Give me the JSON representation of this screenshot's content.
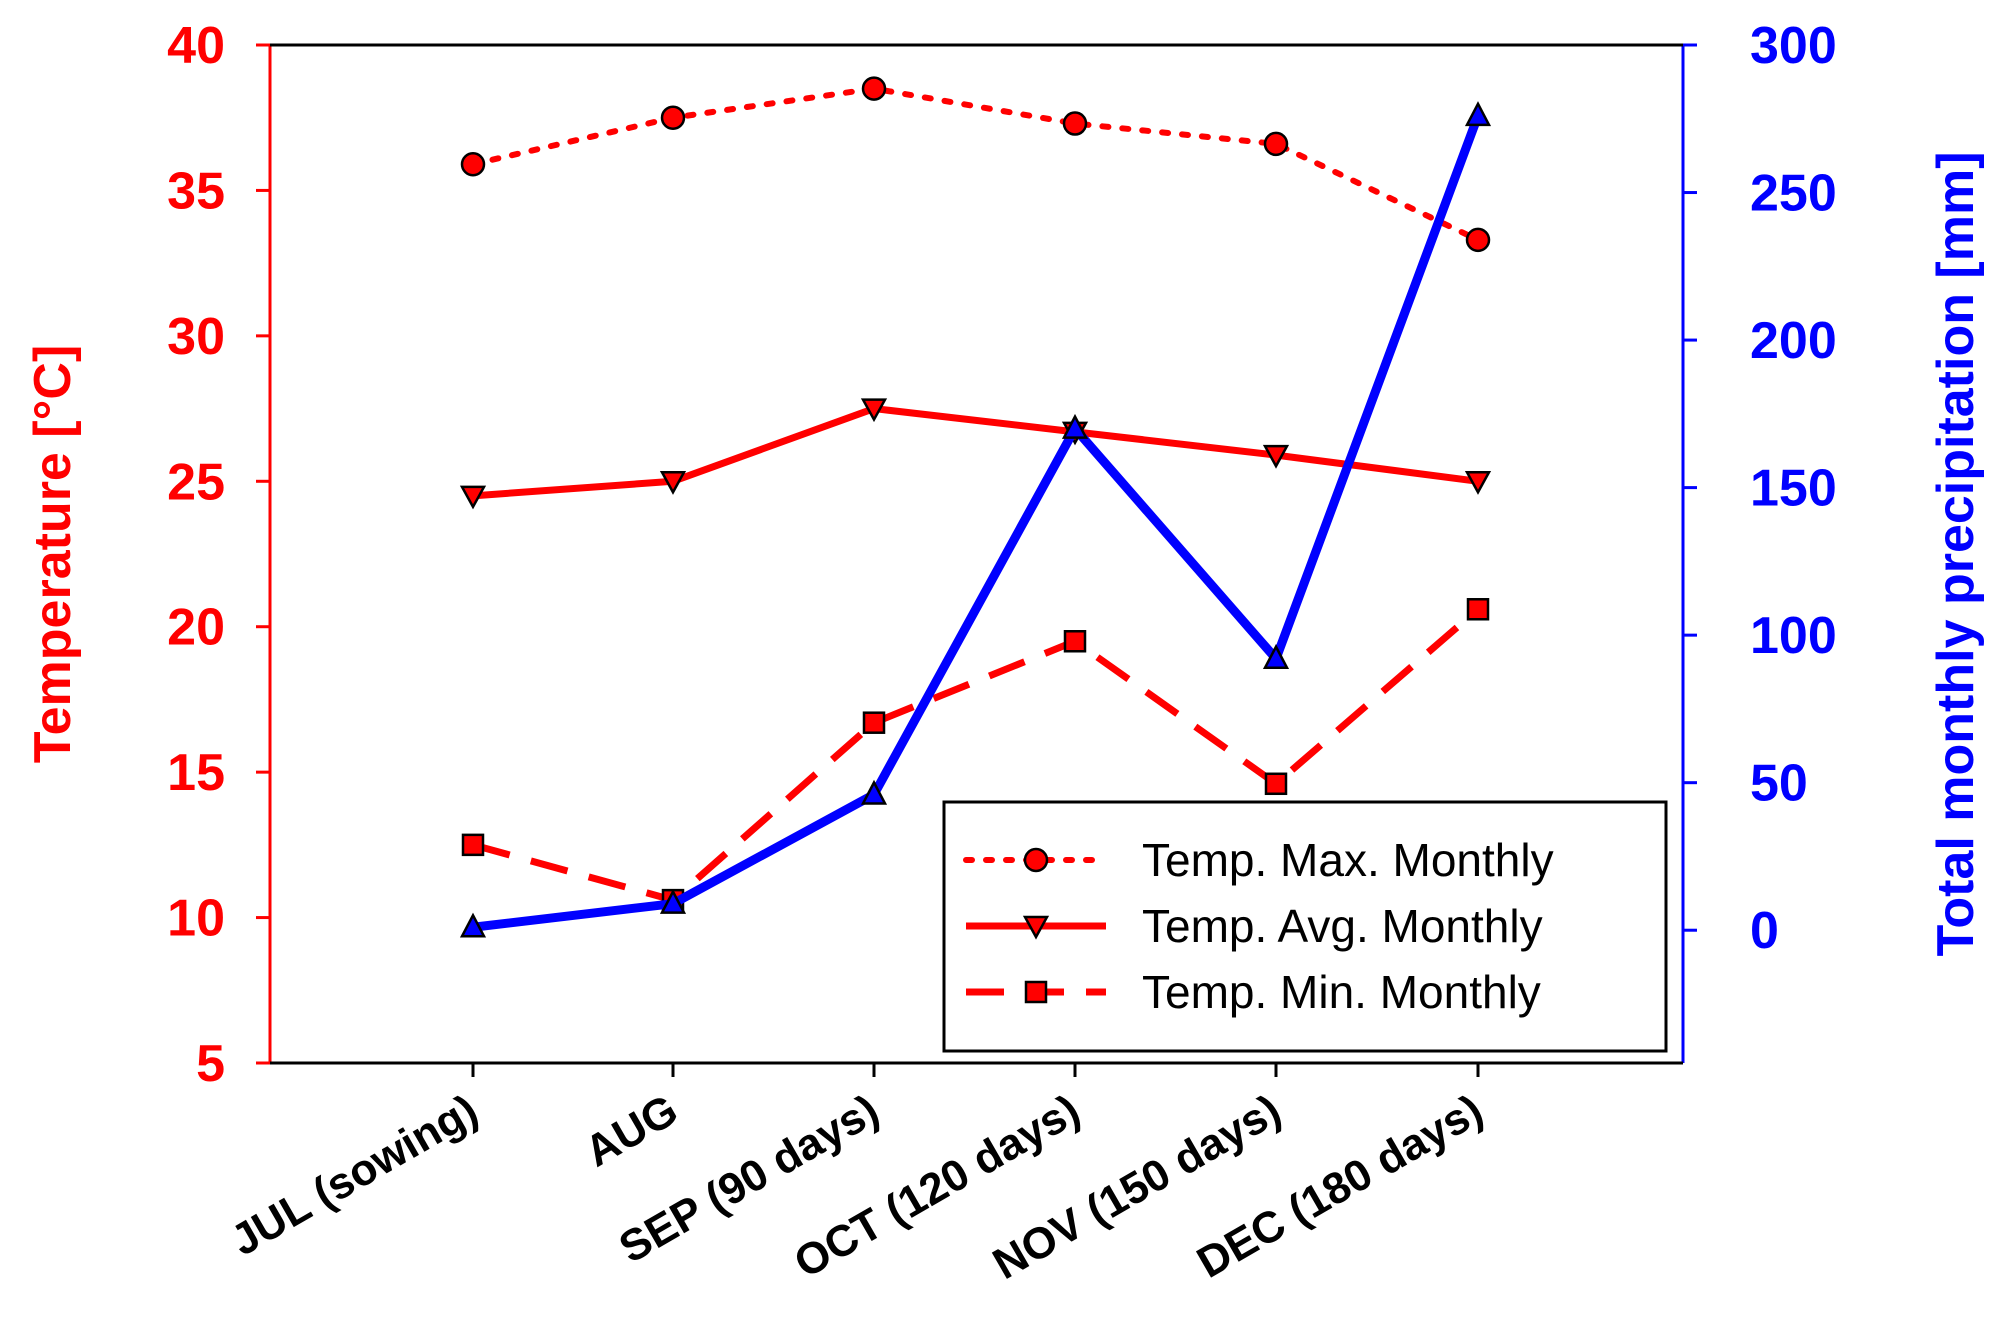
{
  "chart_data": {
    "type": "line",
    "categories": [
      "JUL (sowing)",
      "AUG",
      "SEP (90 days)",
      "OCT (120 days)",
      "NOV (150 days)",
      "DEC (180 days)"
    ],
    "series": [
      {
        "name": "Temp. Max. Monthly",
        "axis": "left",
        "values": [
          35.9,
          37.5,
          38.5,
          37.3,
          36.6,
          33.3
        ],
        "color": "#ff0000",
        "dash": "dotted",
        "marker": "circle"
      },
      {
        "name": "Temp. Avg. Monthly",
        "axis": "left",
        "values": [
          24.5,
          25.0,
          27.5,
          26.7,
          25.9,
          25.0
        ],
        "color": "#ff0000",
        "dash": "solid",
        "marker": "triangle-down"
      },
      {
        "name": "Temp. Min. Monthly",
        "axis": "left",
        "values": [
          12.5,
          10.6,
          16.7,
          19.5,
          14.6,
          20.6
        ],
        "color": "#ff0000",
        "dash": "dashed",
        "marker": "square"
      },
      {
        "name": "Total monthly precipitation",
        "axis": "right",
        "values": [
          1,
          9,
          46,
          170,
          92,
          276
        ],
        "color": "#0000ff",
        "dash": "solid",
        "marker": "triangle-up"
      }
    ],
    "left_axis": {
      "label": "Temperature [°C]",
      "ylim": [
        5,
        40
      ],
      "ticks": [
        5,
        10,
        15,
        20,
        25,
        30,
        35,
        40
      ],
      "color": "#ff0000"
    },
    "right_axis": {
      "label": "Total monthly precipitation [mm]",
      "ylim": [
        -45,
        300
      ],
      "ticks": [
        0,
        50,
        100,
        150,
        200,
        250,
        300
      ],
      "color": "#0000ff"
    },
    "legend": [
      "Temp. Max. Monthly",
      "Temp. Avg. Monthly",
      "Temp. Min. Monthly"
    ],
    "legend_position": "bottom-right",
    "grid": false
  }
}
